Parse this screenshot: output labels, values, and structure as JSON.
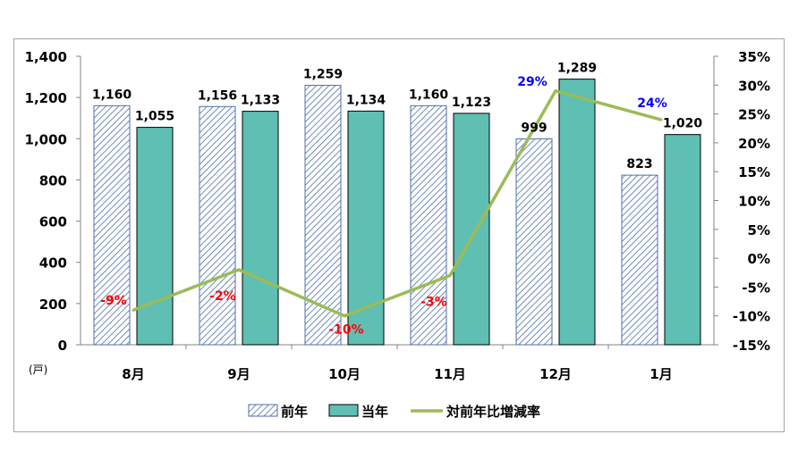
{
  "chart_data": {
    "type": "bar",
    "categories": [
      "8月",
      "9月",
      "10月",
      "11月",
      "12月",
      "1月"
    ],
    "series": [
      {
        "name": "前年",
        "type": "bar",
        "axis": "left",
        "values": [
          1160,
          1156,
          1259,
          1160,
          999,
          823
        ],
        "labels": [
          "1,160",
          "1,156",
          "1,259",
          "1,160",
          "999",
          "823"
        ],
        "fill": "hatched-blue"
      },
      {
        "name": "当年",
        "type": "bar",
        "axis": "left",
        "values": [
          1055,
          1133,
          1134,
          1123,
          1289,
          1020
        ],
        "labels": [
          "1,055",
          "1,133",
          "1,134",
          "1,123",
          "1,289",
          "1,020"
        ],
        "color": "#5fbfb3"
      },
      {
        "name": "対前年比増減率",
        "type": "line",
        "axis": "right",
        "values": [
          -9,
          -2,
          -10,
          -3,
          29,
          24
        ],
        "labels": [
          "-9%",
          "-2%",
          "-10%",
          "-3%",
          "29%",
          "24%"
        ],
        "color": "#9bbb59"
      }
    ],
    "y_left": {
      "min": 0,
      "max": 1400,
      "step": 200,
      "unit_label": "(戸)",
      "ticks": [
        "0",
        "200",
        "400",
        "600",
        "800",
        "1,000",
        "1,200",
        "1,400"
      ]
    },
    "y_right": {
      "min": -15,
      "max": 35,
      "step": 5,
      "ticks": [
        "-15%",
        "-10%",
        "-5%",
        "0%",
        "5%",
        "10%",
        "15%",
        "20%",
        "25%",
        "30%",
        "35%"
      ]
    },
    "legend_position": "bottom",
    "grid": false,
    "colors": {
      "negative_label": "#ff0000",
      "positive_label": "#0000ff",
      "hatch": "#4f6fa8",
      "bar_border": "#000000"
    }
  }
}
